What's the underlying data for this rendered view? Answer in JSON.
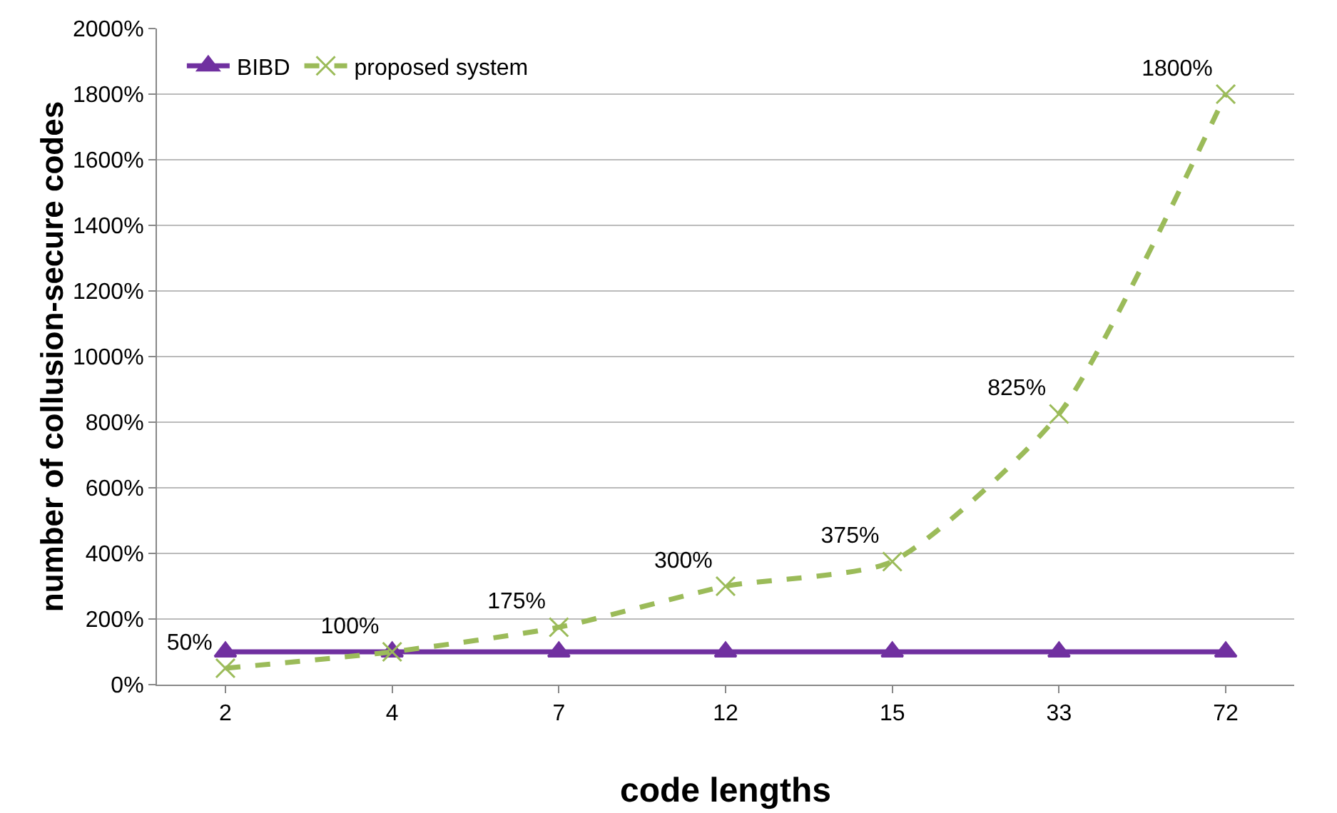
{
  "chart_data": {
    "type": "line",
    "xlabel": "code lengths",
    "ylabel": "number of collusion-secure codes",
    "categories": [
      "2",
      "4",
      "7",
      "12",
      "15",
      "33",
      "72"
    ],
    "series": [
      {
        "name": "BIBD",
        "color": "#7030a0",
        "marker": "triangle",
        "line_style": "solid",
        "values": [
          100,
          100,
          100,
          100,
          100,
          100,
          100
        ]
      },
      {
        "name": "proposed system",
        "color": "#9bbb59",
        "marker": "cross",
        "line_style": "dashed",
        "values": [
          50,
          100,
          175,
          300,
          375,
          825,
          1800
        ],
        "value_labels": [
          "50%",
          "100%",
          "175%",
          "300%",
          "375%",
          "825%",
          "1800%"
        ]
      }
    ],
    "ylim": [
      0,
      2000
    ],
    "yticks": [
      {
        "value": 0,
        "label": "0%"
      },
      {
        "value": 200,
        "label": "200%"
      },
      {
        "value": 400,
        "label": "400%"
      },
      {
        "value": 600,
        "label": "600%"
      },
      {
        "value": 800,
        "label": "800%"
      },
      {
        "value": 1000,
        "label": "1000%"
      },
      {
        "value": 1200,
        "label": "1200%"
      },
      {
        "value": 1400,
        "label": "1400%"
      },
      {
        "value": 1600,
        "label": "1600%"
      },
      {
        "value": 1800,
        "label": "1800%"
      },
      {
        "value": 2000,
        "label": "2000%"
      }
    ],
    "grid": "y",
    "legend": "top left"
  }
}
